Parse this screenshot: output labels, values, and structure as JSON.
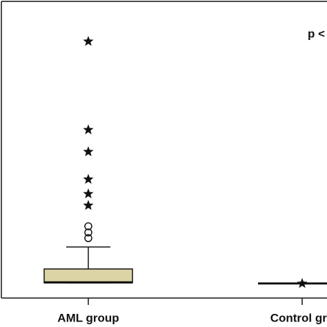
{
  "chart_data": {
    "type": "box",
    "annotation": "p <",
    "categories": [
      "AML group",
      "Control gro"
    ],
    "color": "#dcd4a4",
    "ylim": [
      0,
      100
    ],
    "boxes": [
      {
        "whisker_low": 5.1,
        "q1": 5.1,
        "median": 5.3,
        "q3": 9.8,
        "whisker_high": 17.2,
        "outliers": [
          24.2,
          22.1,
          20.2
        ],
        "extremes": [
          86.5,
          56.7,
          49.3,
          40.0,
          35.1,
          31.2
        ]
      },
      {
        "whisker_low": 4.9,
        "q1": 4.9,
        "median": 4.9,
        "q3": 4.9,
        "whisker_high": 4.9,
        "outliers": [],
        "extremes": [
          4.9
        ]
      }
    ]
  }
}
